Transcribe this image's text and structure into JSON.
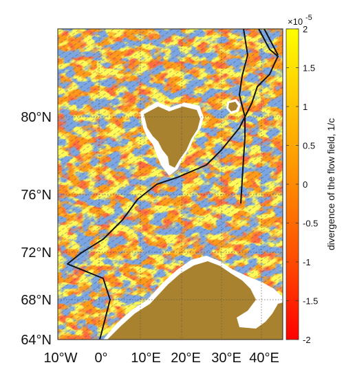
{
  "map": {
    "y_ticks": [
      "64°N",
      "68°N",
      "72°N",
      "76°N",
      "80°N"
    ],
    "x_ticks": [
      "10°W",
      "0°",
      "10°E",
      "20°E",
      "30°E",
      "40°E"
    ],
    "lat_range": [
      64,
      84
    ],
    "lon_range": [
      -10,
      44
    ]
  },
  "colorbar": {
    "title": "divergence of the flow field, 1/c",
    "exponent_base": "×10",
    "exponent_power": "-5",
    "ticks": [
      "2",
      "1.5",
      "1",
      "0.5",
      "0",
      "-0.5",
      "-1",
      "-1.5",
      "-2"
    ],
    "range": [
      -2,
      2
    ]
  },
  "colors": {
    "land": "#a8822e",
    "low": "#ff1a00",
    "mid": "#ff8c00",
    "high": "#ffff00",
    "blue_noise": "#3a68b8",
    "boundary": "#111111",
    "grid": "#555555"
  }
}
